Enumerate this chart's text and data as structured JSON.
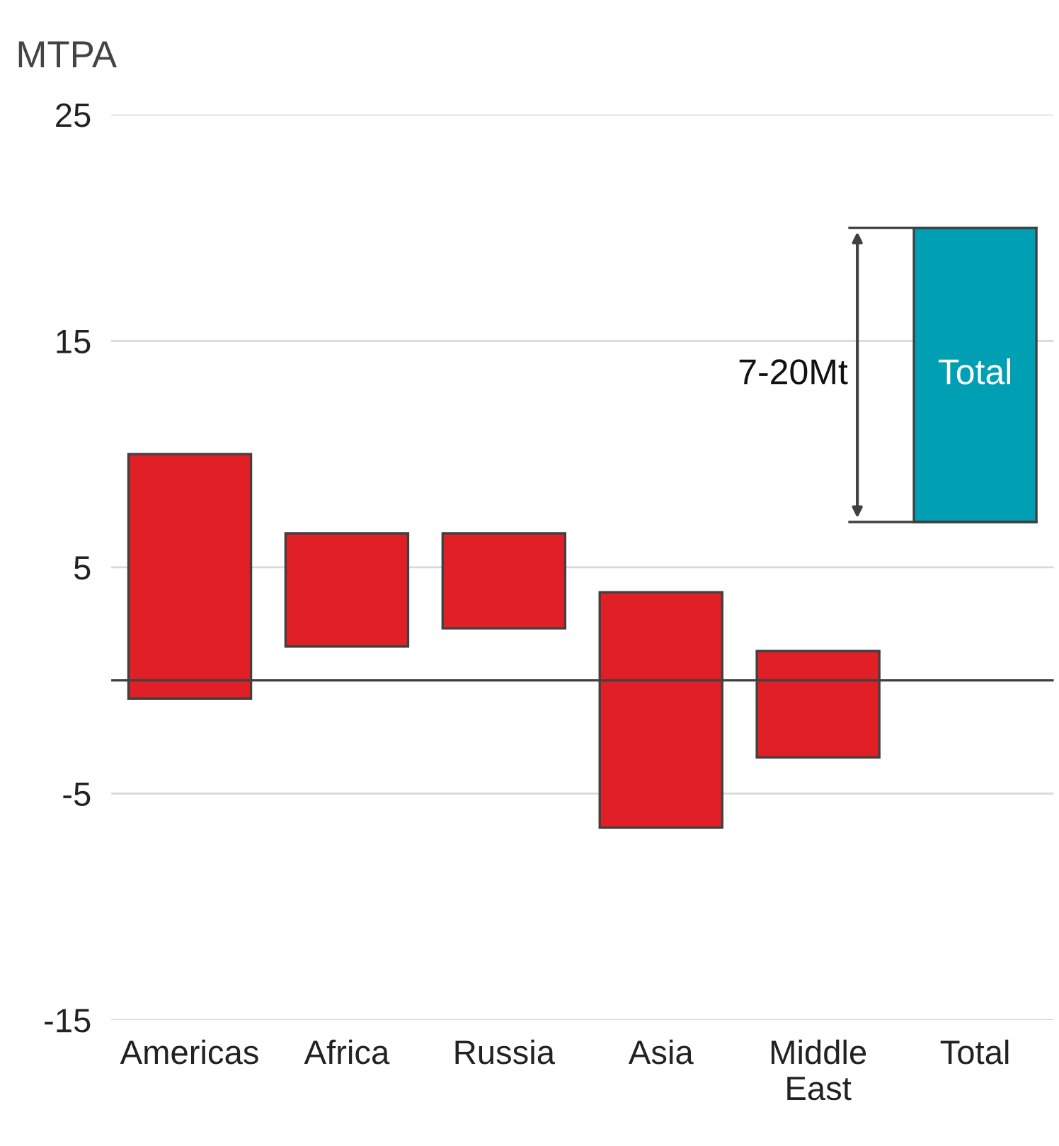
{
  "chart_data": {
    "type": "bar",
    "ylabel": "MTPA",
    "categories": [
      "Americas",
      "Africa",
      "Russia",
      "Asia",
      "Middle\nEast",
      "Total"
    ],
    "base": [
      -0.8,
      1.5,
      2.3,
      -6.5,
      -3.4,
      7
    ],
    "values": [
      10.8,
      5,
      4.2,
      10.4,
      4.7,
      13
    ],
    "colors": [
      "#e01f26",
      "#e01f26",
      "#e01f26",
      "#e01f26",
      "#e01f26",
      "#009fb4"
    ],
    "ylim": [
      -15,
      25
    ],
    "yticks": [
      -15,
      -5,
      5,
      15,
      25
    ],
    "grid": "y",
    "ref_lines": [
      {
        "axis": "y",
        "value": 0,
        "color": "#404040"
      }
    ],
    "annotations": [
      "7-20Mt",
      "Total"
    ]
  }
}
